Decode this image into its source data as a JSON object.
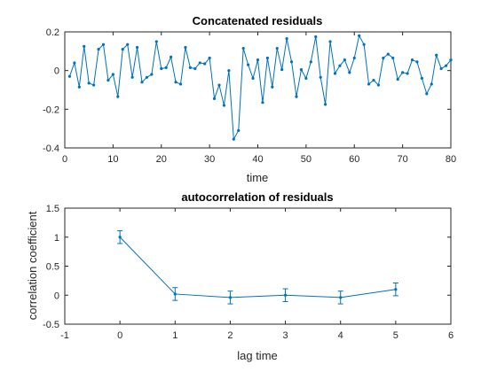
{
  "colors": {
    "series": "#0072BD",
    "axis": "#262626",
    "background": "#ffffff"
  },
  "chart_data": [
    {
      "type": "line",
      "title": "Concatenated residuals",
      "xlabel": "time",
      "ylabel": "",
      "xlim": [
        0,
        80
      ],
      "ylim": [
        -0.4,
        0.2
      ],
      "xticks": [
        0,
        10,
        20,
        30,
        40,
        50,
        60,
        70,
        80
      ],
      "yticks": [
        -0.4,
        -0.2,
        0,
        0.2
      ],
      "xtick_labels": [
        "0",
        "10",
        "20",
        "30",
        "40",
        "50",
        "60",
        "70",
        "80"
      ],
      "ytick_labels": [
        "-0.4",
        "-0.2",
        "0",
        "0.2"
      ],
      "grid": false,
      "marker": "dot",
      "series": [
        {
          "x": [
            1,
            2,
            3,
            4,
            5,
            6,
            7,
            8,
            9,
            10,
            11,
            12,
            13,
            14,
            15,
            16,
            17,
            18,
            19,
            20,
            21,
            22,
            23,
            24,
            25,
            26,
            27,
            28,
            29,
            30,
            31,
            32,
            33,
            34,
            35,
            36,
            37,
            38,
            39,
            40,
            41,
            42,
            43,
            44,
            45,
            46,
            47,
            48,
            49,
            50,
            51,
            52,
            53,
            54,
            55,
            56,
            57,
            58,
            59,
            60,
            61,
            62,
            63,
            64,
            65,
            66,
            67,
            68,
            69,
            70,
            71,
            72,
            73,
            74,
            75,
            76,
            77,
            78,
            79,
            80
          ],
          "values": [
            -0.03,
            0.04,
            -0.085,
            0.125,
            -0.065,
            -0.075,
            0.11,
            0.135,
            -0.05,
            -0.02,
            -0.135,
            0.11,
            0.135,
            -0.035,
            0.12,
            -0.06,
            -0.035,
            -0.02,
            0.15,
            0.01,
            0.015,
            0.07,
            -0.06,
            -0.07,
            0.12,
            0.015,
            0.01,
            0.04,
            0.035,
            0.065,
            -0.145,
            -0.075,
            -0.18,
            0,
            -0.355,
            -0.31,
            0.115,
            0.03,
            -0.04,
            0.055,
            -0.165,
            0.065,
            -0.085,
            0.115,
            0.005,
            0.165,
            0.045,
            -0.135,
            0.005,
            -0.04,
            0.045,
            0.175,
            -0.035,
            -0.175,
            0.15,
            -0.015,
            0.025,
            0.055,
            -0.01,
            0.065,
            0.18,
            0.135,
            -0.07,
            -0.05,
            -0.075,
            0.065,
            0.085,
            0.065,
            -0.045,
            -0.01,
            -0.015,
            0.055,
            0.045,
            -0.04,
            -0.12,
            -0.07,
            0.08,
            0.01,
            0.025,
            0.055
          ]
        }
      ]
    },
    {
      "type": "line",
      "title": "autocorrelation of residuals",
      "xlabel": "lag time",
      "ylabel": "correlation coefficient",
      "xlim": [
        -1,
        6
      ],
      "ylim": [
        -0.5,
        1.5
      ],
      "xticks": [
        -1,
        0,
        1,
        2,
        3,
        4,
        5,
        6
      ],
      "yticks": [
        -0.5,
        0,
        0.5,
        1,
        1.5
      ],
      "xtick_labels": [
        "-1",
        "0",
        "1",
        "2",
        "3",
        "4",
        "5",
        "6"
      ],
      "ytick_labels": [
        "-0.5",
        "0",
        "0.5",
        "1",
        "1.5"
      ],
      "grid": false,
      "error_bars": true,
      "series": [
        {
          "x": [
            0,
            1,
            2,
            3,
            4,
            5
          ],
          "values": [
            1.0,
            0.02,
            -0.04,
            0.0,
            -0.04,
            0.1
          ],
          "error": [
            0.11,
            0.11,
            0.11,
            0.11,
            0.11,
            0.11
          ]
        }
      ]
    }
  ]
}
